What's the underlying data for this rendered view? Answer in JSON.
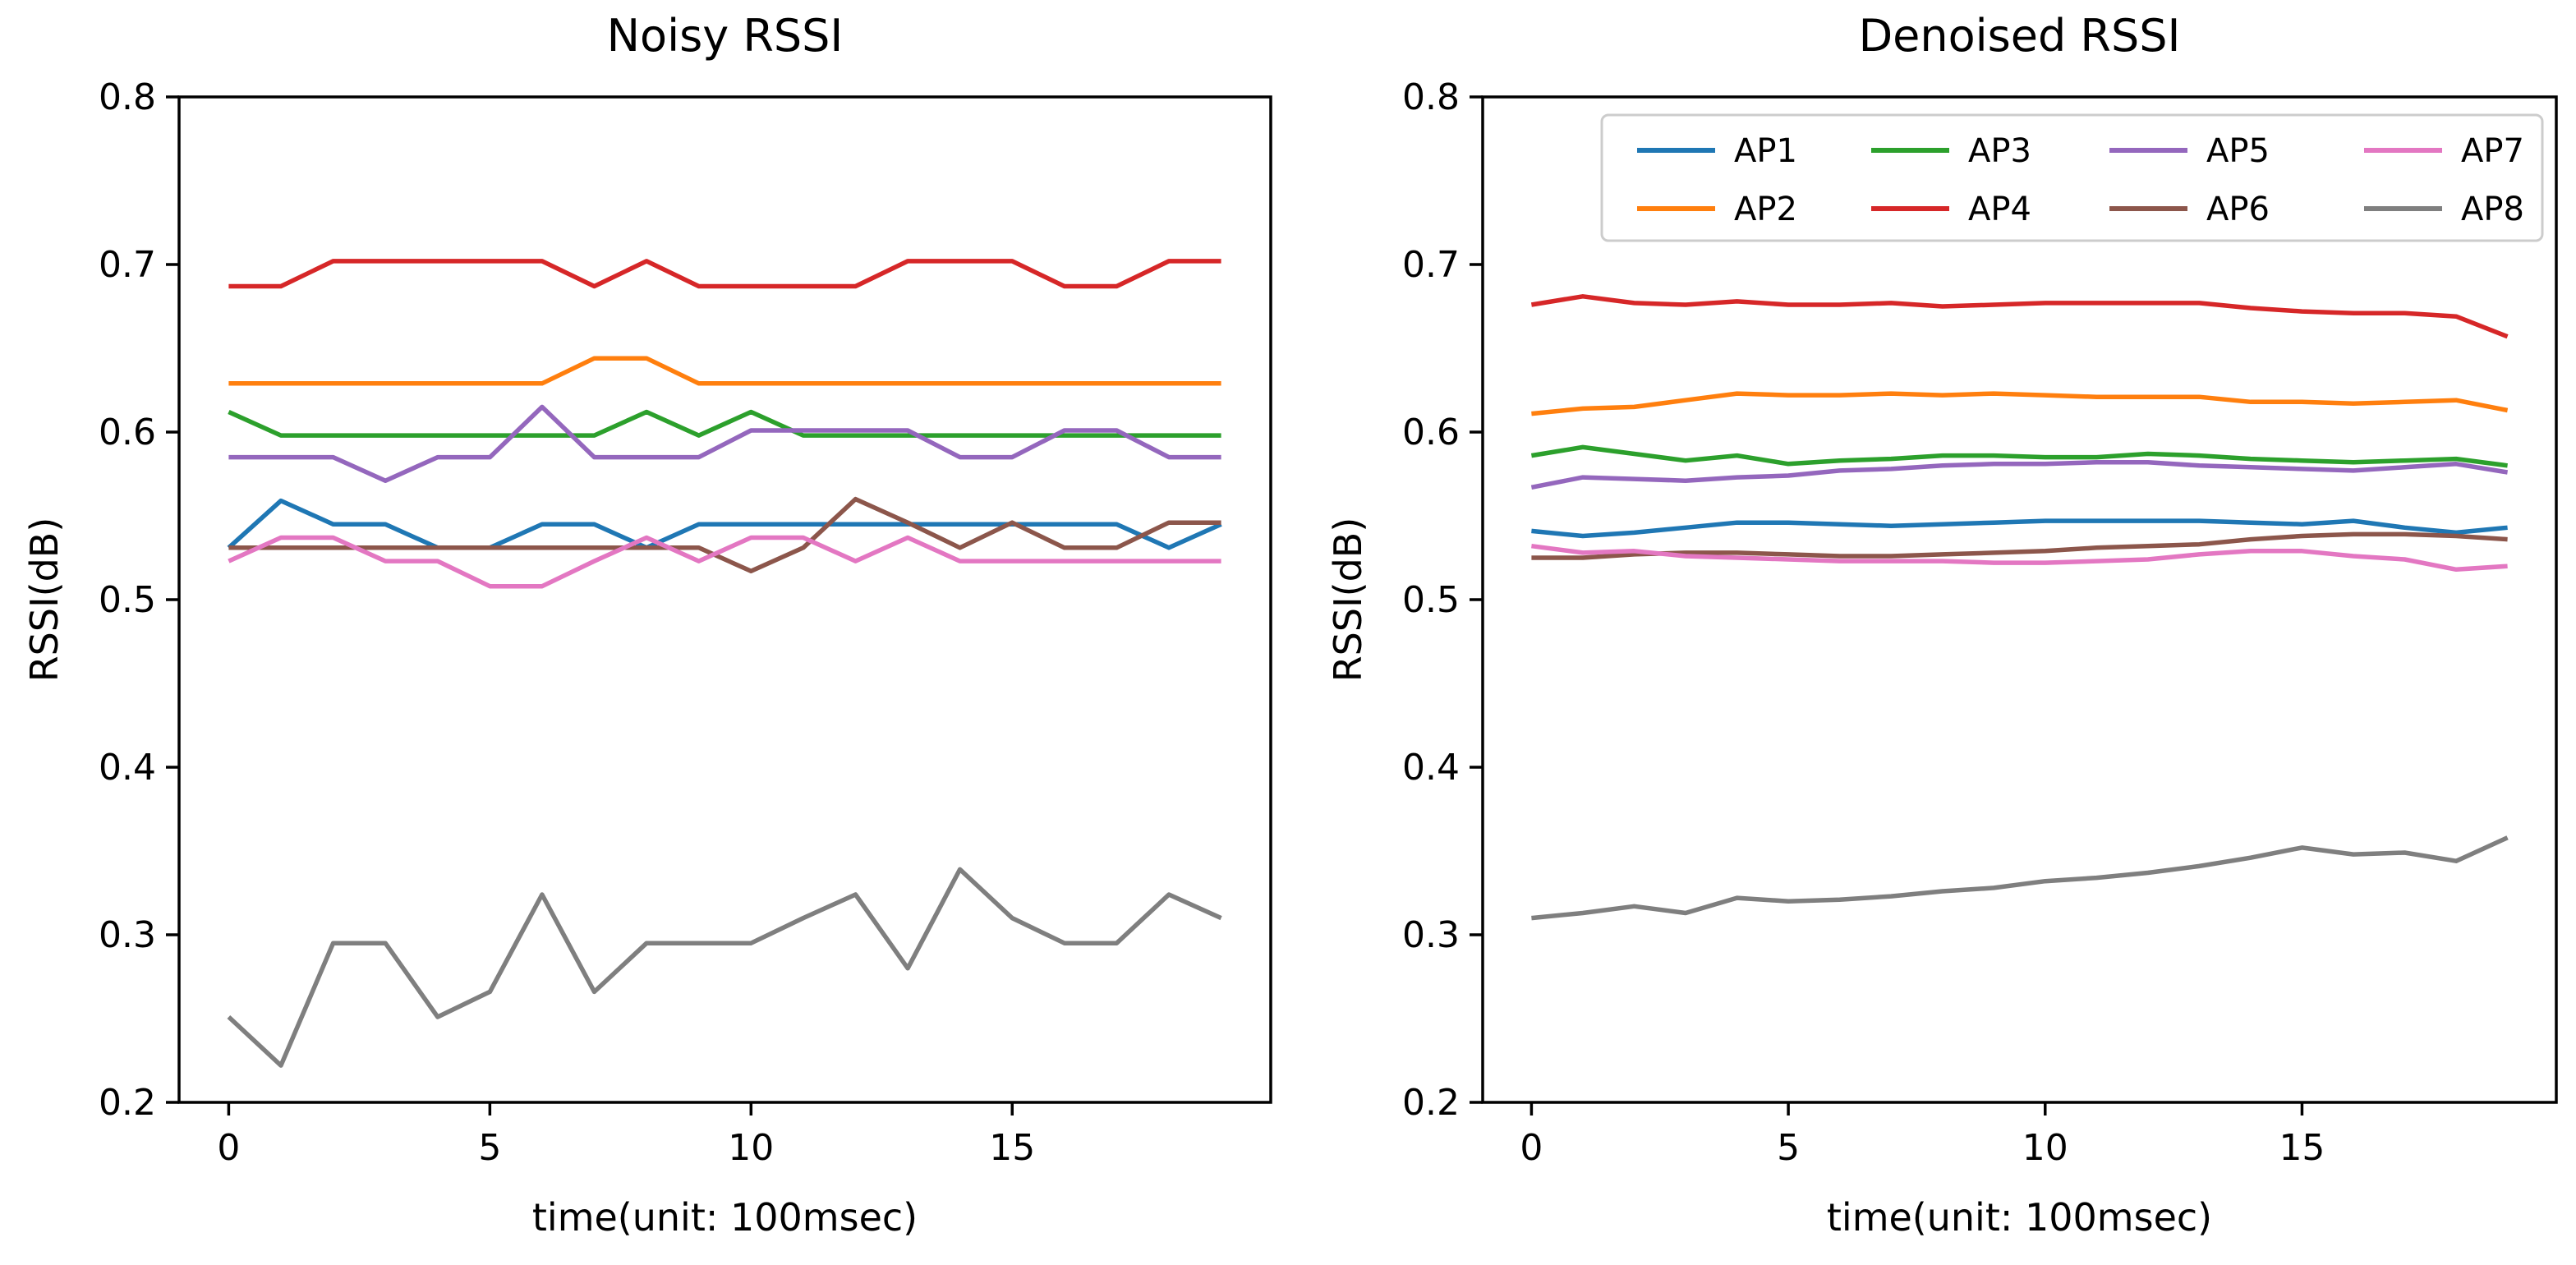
{
  "figure": {
    "background": "#ffffff",
    "text_color": "#000000",
    "spine_color": "#000000",
    "legend_edge_color": "#cccccc",
    "legend_face_color": "#ffffff"
  },
  "chart_data": [
    {
      "type": "line",
      "title": "Noisy RSSI",
      "xlabel": "time(unit: 100msec)",
      "ylabel": "RSSI(dB)",
      "xlim": [
        -0.95,
        19.95
      ],
      "ylim": [
        0.2,
        0.8
      ],
      "xticks": [
        0,
        5,
        10,
        15
      ],
      "yticks": [
        0.2,
        0.3,
        0.4,
        0.5,
        0.6,
        0.7,
        0.8
      ],
      "grid": false,
      "legend": false,
      "x": [
        0,
        1,
        2,
        3,
        4,
        5,
        6,
        7,
        8,
        9,
        10,
        11,
        12,
        13,
        14,
        15,
        16,
        17,
        18,
        19
      ],
      "series": [
        {
          "name": "AP1",
          "color": "#1f77b4",
          "values": [
            0.531,
            0.559,
            0.545,
            0.545,
            0.531,
            0.531,
            0.545,
            0.545,
            0.531,
            0.545,
            0.545,
            0.545,
            0.545,
            0.545,
            0.545,
            0.545,
            0.545,
            0.545,
            0.531,
            0.545
          ]
        },
        {
          "name": "AP2",
          "color": "#ff7f0e",
          "values": [
            0.629,
            0.629,
            0.629,
            0.629,
            0.629,
            0.629,
            0.629,
            0.644,
            0.644,
            0.629,
            0.629,
            0.629,
            0.629,
            0.629,
            0.629,
            0.629,
            0.629,
            0.629,
            0.629,
            0.629
          ]
        },
        {
          "name": "AP3",
          "color": "#2ca02c",
          "values": [
            0.612,
            0.598,
            0.598,
            0.598,
            0.598,
            0.598,
            0.598,
            0.598,
            0.612,
            0.598,
            0.612,
            0.598,
            0.598,
            0.598,
            0.598,
            0.598,
            0.598,
            0.598,
            0.598,
            0.598
          ]
        },
        {
          "name": "AP4",
          "color": "#d62728",
          "values": [
            0.687,
            0.687,
            0.702,
            0.702,
            0.702,
            0.702,
            0.702,
            0.687,
            0.702,
            0.687,
            0.687,
            0.687,
            0.687,
            0.702,
            0.702,
            0.702,
            0.687,
            0.687,
            0.702,
            0.702
          ]
        },
        {
          "name": "AP5",
          "color": "#9467bd",
          "values": [
            0.585,
            0.585,
            0.585,
            0.571,
            0.585,
            0.585,
            0.615,
            0.585,
            0.585,
            0.585,
            0.601,
            0.601,
            0.601,
            0.601,
            0.585,
            0.585,
            0.601,
            0.601,
            0.585,
            0.585
          ]
        },
        {
          "name": "AP6",
          "color": "#8c564b",
          "values": [
            0.531,
            0.531,
            0.531,
            0.531,
            0.531,
            0.531,
            0.531,
            0.531,
            0.531,
            0.531,
            0.517,
            0.531,
            0.56,
            0.546,
            0.531,
            0.546,
            0.531,
            0.531,
            0.546,
            0.546
          ]
        },
        {
          "name": "AP7",
          "color": "#e377c2",
          "values": [
            0.523,
            0.537,
            0.537,
            0.523,
            0.523,
            0.508,
            0.508,
            0.523,
            0.537,
            0.523,
            0.537,
            0.537,
            0.523,
            0.537,
            0.523,
            0.523,
            0.523,
            0.523,
            0.523,
            0.523
          ]
        },
        {
          "name": "AP8",
          "color": "#7f7f7f",
          "values": [
            0.251,
            0.222,
            0.295,
            0.295,
            0.251,
            0.266,
            0.324,
            0.266,
            0.295,
            0.295,
            0.295,
            0.31,
            0.324,
            0.28,
            0.339,
            0.31,
            0.295,
            0.295,
            0.324,
            0.31
          ]
        }
      ]
    },
    {
      "type": "line",
      "title": "Denoised RSSI",
      "xlabel": "time(unit: 100msec)",
      "ylabel": "RSSI(dB)",
      "xlim": [
        -0.95,
        19.95
      ],
      "ylim": [
        0.2,
        0.8
      ],
      "xticks": [
        0,
        5,
        10,
        15
      ],
      "yticks": [
        0.2,
        0.3,
        0.4,
        0.5,
        0.6,
        0.7,
        0.8
      ],
      "grid": false,
      "legend": true,
      "legend_ncol": 4,
      "legend_rows": 2,
      "legend_position": "upper right",
      "x": [
        0,
        1,
        2,
        3,
        4,
        5,
        6,
        7,
        8,
        9,
        10,
        11,
        12,
        13,
        14,
        15,
        16,
        17,
        18,
        19
      ],
      "series": [
        {
          "name": "AP1",
          "color": "#1f77b4",
          "values": [
            0.541,
            0.538,
            0.54,
            0.543,
            0.546,
            0.546,
            0.545,
            0.544,
            0.545,
            0.546,
            0.547,
            0.547,
            0.547,
            0.547,
            0.546,
            0.545,
            0.547,
            0.543,
            0.54,
            0.543
          ]
        },
        {
          "name": "AP2",
          "color": "#ff7f0e",
          "values": [
            0.611,
            0.614,
            0.615,
            0.619,
            0.623,
            0.622,
            0.622,
            0.623,
            0.622,
            0.623,
            0.622,
            0.621,
            0.621,
            0.621,
            0.618,
            0.618,
            0.617,
            0.618,
            0.619,
            0.613
          ]
        },
        {
          "name": "AP3",
          "color": "#2ca02c",
          "values": [
            0.586,
            0.591,
            0.587,
            0.583,
            0.586,
            0.581,
            0.583,
            0.584,
            0.586,
            0.586,
            0.585,
            0.585,
            0.587,
            0.586,
            0.584,
            0.583,
            0.582,
            0.583,
            0.584,
            0.58
          ]
        },
        {
          "name": "AP4",
          "color": "#d62728",
          "values": [
            0.676,
            0.681,
            0.677,
            0.676,
            0.678,
            0.676,
            0.676,
            0.677,
            0.675,
            0.676,
            0.677,
            0.677,
            0.677,
            0.677,
            0.674,
            0.672,
            0.671,
            0.671,
            0.669,
            0.657
          ]
        },
        {
          "name": "AP5",
          "color": "#9467bd",
          "values": [
            0.567,
            0.573,
            0.572,
            0.571,
            0.573,
            0.574,
            0.577,
            0.578,
            0.58,
            0.581,
            0.581,
            0.582,
            0.582,
            0.58,
            0.579,
            0.578,
            0.577,
            0.579,
            0.581,
            0.576
          ]
        },
        {
          "name": "AP6",
          "color": "#8c564b",
          "values": [
            0.525,
            0.525,
            0.527,
            0.528,
            0.528,
            0.527,
            0.526,
            0.526,
            0.527,
            0.528,
            0.529,
            0.531,
            0.532,
            0.533,
            0.536,
            0.538,
            0.539,
            0.539,
            0.538,
            0.536
          ]
        },
        {
          "name": "AP7",
          "color": "#e377c2",
          "values": [
            0.532,
            0.528,
            0.529,
            0.526,
            0.525,
            0.524,
            0.523,
            0.523,
            0.523,
            0.522,
            0.522,
            0.523,
            0.524,
            0.527,
            0.529,
            0.529,
            0.526,
            0.524,
            0.518,
            0.52
          ]
        },
        {
          "name": "AP8",
          "color": "#7f7f7f",
          "values": [
            0.31,
            0.313,
            0.317,
            0.313,
            0.322,
            0.32,
            0.321,
            0.323,
            0.326,
            0.328,
            0.332,
            0.334,
            0.337,
            0.341,
            0.346,
            0.352,
            0.348,
            0.349,
            0.344,
            0.358
          ]
        }
      ]
    }
  ]
}
